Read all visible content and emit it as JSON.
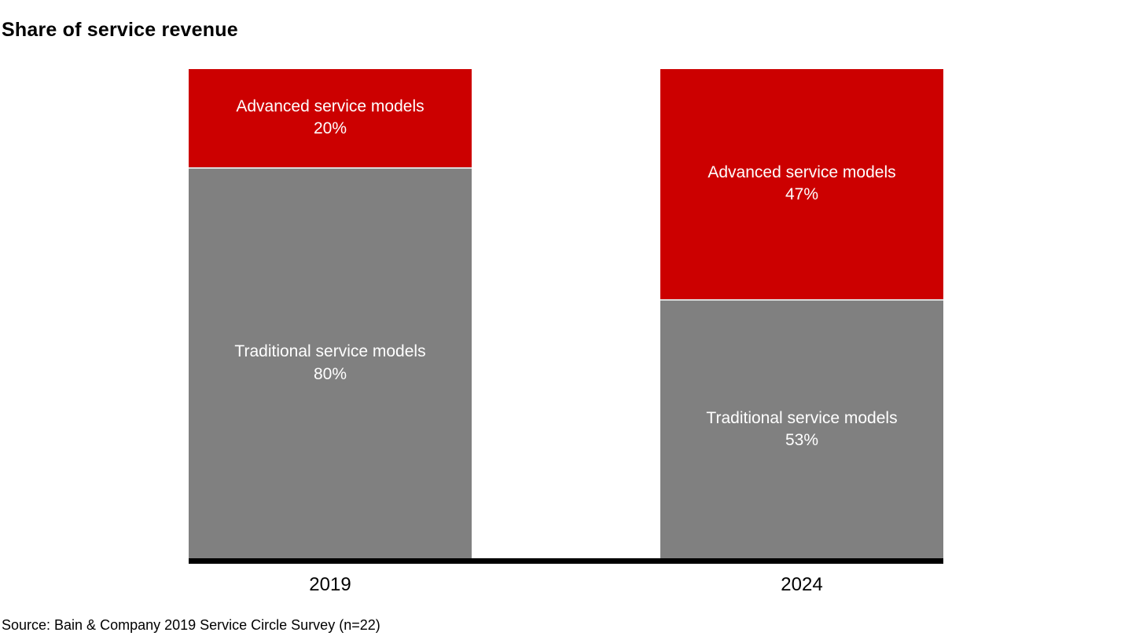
{
  "chart_data": {
    "type": "bar",
    "subtype": "stacked-100-percent-column",
    "title": "Share of service revenue",
    "categories": [
      "2019",
      "2024"
    ],
    "series": [
      {
        "name": "Advanced service models",
        "color": "#cc0000",
        "values": [
          20,
          47
        ]
      },
      {
        "name": "Traditional service models",
        "color": "#808080",
        "values": [
          80,
          53
        ]
      }
    ],
    "unit": "%",
    "ylim": [
      0,
      100
    ],
    "grid": false,
    "legend": "none",
    "value_labels": "inside-center",
    "source": "Source: Bain & Company 2019 Service Circle Survey (n=22)"
  },
  "colors": {
    "advanced": "#cc0000",
    "traditional": "#808080",
    "segment_separator": "#d9d9d9",
    "axis": "#000000",
    "text_on_bar": "#ffffff",
    "text": "#000000",
    "background": "#ffffff"
  }
}
